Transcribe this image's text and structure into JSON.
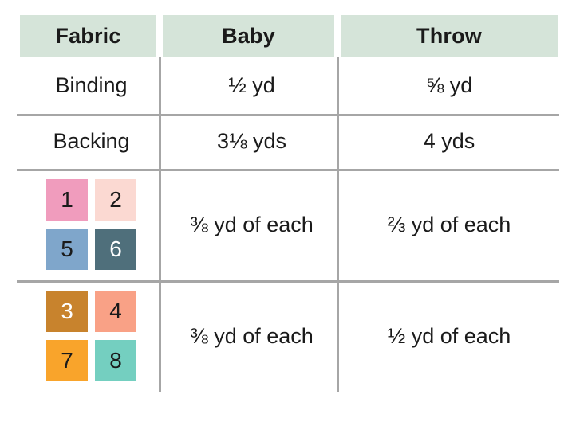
{
  "table": {
    "columns": [
      "Fabric",
      "Baby",
      "Throw"
    ],
    "rows": [
      {
        "fabric": "Binding",
        "baby": "½ yd",
        "throw": "⅝ yd"
      },
      {
        "fabric": "Backing",
        "baby": "3⅛ yds",
        "throw": "4 yds"
      },
      {
        "fabric": "fabrics 1, 2, 5, 6",
        "baby": "⅜ yd of each",
        "throw": "⅔ yd of each"
      },
      {
        "fabric": "fabrics 3, 4, 7, 8",
        "baby": "⅜ yd of each",
        "throw": "½ yd of each"
      }
    ]
  },
  "swatches": [
    {
      "num": "1",
      "bg": "#f09cbd",
      "text": "#1a1a1a"
    },
    {
      "num": "2",
      "bg": "#fbd9d2",
      "text": "#1a1a1a"
    },
    {
      "num": "5",
      "bg": "#7fa6cb",
      "text": "#1a1a1a"
    },
    {
      "num": "6",
      "bg": "#4f6f7b",
      "text": "#ffffff"
    },
    {
      "num": "3",
      "bg": "#c8832d",
      "text": "#ffffff"
    },
    {
      "num": "4",
      "bg": "#f9a186",
      "text": "#1a1a1a"
    },
    {
      "num": "7",
      "bg": "#f9a42b",
      "text": "#1a1a1a"
    },
    {
      "num": "8",
      "bg": "#74cfc0",
      "text": "#1a1a1a"
    }
  ],
  "colors": {
    "header_bg": "#d5e4d9",
    "grid_line": "#a6a6a6",
    "text": "#1a1a1a"
  }
}
